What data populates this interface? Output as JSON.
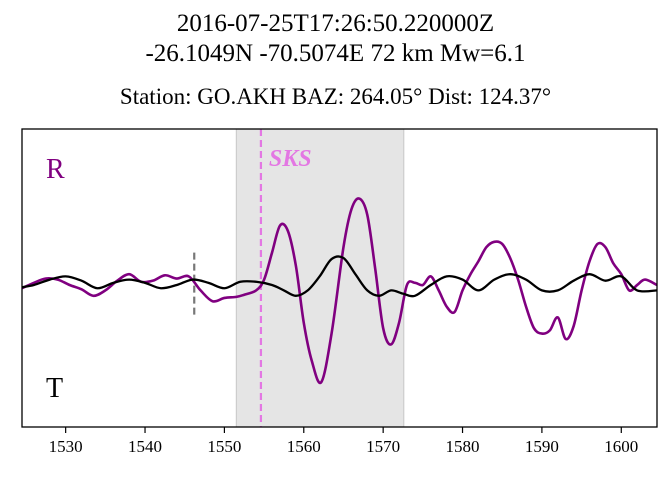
{
  "title": {
    "event_time": "2016-07-25T17:26:50.220000Z",
    "event_location": "-26.1049N -70.5074E 72 km  Mw=6.1",
    "station_info": "Station: GO.AKH  BAZ: 264.05° Dist: 124.37°"
  },
  "colors": {
    "radial": "#800080",
    "transverse": "#000000",
    "phase_line": "#e377e3",
    "window_fill": "#e5e5e5",
    "marker": "#777777"
  },
  "chart_data": {
    "type": "line",
    "xlim": [
      1524.5,
      1604.5
    ],
    "ylim": [
      -1.0,
      1.0
    ],
    "xticks": [
      1530,
      1540,
      1550,
      1560,
      1570,
      1580,
      1590,
      1600
    ],
    "xtick_labels": [
      "1530",
      "1540",
      "1550",
      "1560",
      "1570",
      "1580",
      "1590",
      "1600"
    ],
    "grid": false,
    "channel_labels": {
      "top": "R",
      "bottom": "T"
    },
    "phase": {
      "name": "SKS",
      "time": 1554.6
    },
    "window": [
      1551.5,
      1572.6
    ],
    "marker_time": 1546.2,
    "marker_range": [
      -0.3,
      0.3
    ],
    "series": [
      {
        "name": "R",
        "color": "#800080",
        "x": [
          1524.5,
          1526,
          1527.5,
          1529,
          1530.5,
          1532,
          1533.5,
          1535,
          1536.5,
          1538,
          1539.5,
          1541,
          1542.5,
          1544,
          1545.5,
          1547,
          1548.5,
          1550,
          1551.5,
          1552.5,
          1554,
          1555,
          1556,
          1557,
          1558,
          1559,
          1560,
          1561,
          1562.2,
          1563.5,
          1565,
          1566,
          1567,
          1568,
          1569,
          1570,
          1571,
          1572,
          1573,
          1574,
          1575,
          1576,
          1577,
          1578,
          1579,
          1580,
          1581,
          1582,
          1583,
          1584,
          1585,
          1586,
          1587,
          1588,
          1589,
          1590,
          1591,
          1592,
          1593,
          1594,
          1595,
          1596,
          1597,
          1598,
          1599,
          1600,
          1601,
          1602,
          1603,
          1604.5
        ],
        "values": [
          -0.03,
          0.02,
          0.06,
          0.05,
          0.0,
          -0.04,
          -0.1,
          -0.05,
          0.04,
          0.1,
          0.03,
          0.04,
          0.09,
          0.06,
          0.08,
          -0.05,
          -0.15,
          -0.12,
          -0.11,
          -0.09,
          -0.05,
          0.05,
          0.3,
          0.55,
          0.5,
          0.18,
          -0.35,
          -0.7,
          -0.9,
          -0.45,
          0.35,
          0.7,
          0.8,
          0.65,
          0.15,
          -0.4,
          -0.55,
          -0.35,
          0.0,
          0.02,
          0.0,
          0.08,
          -0.05,
          -0.2,
          -0.25,
          -0.05,
          0.1,
          0.22,
          0.35,
          0.4,
          0.38,
          0.25,
          0.05,
          -0.2,
          -0.4,
          -0.45,
          -0.42,
          -0.3,
          -0.5,
          -0.38,
          -0.05,
          0.22,
          0.38,
          0.35,
          0.2,
          0.1,
          -0.05,
          0.0,
          0.05,
          0.0
        ]
      },
      {
        "name": "T",
        "color": "#000000",
        "x": [
          1524.5,
          1526,
          1528,
          1530,
          1532,
          1534,
          1536,
          1538,
          1540,
          1542,
          1544,
          1546,
          1548,
          1550,
          1552,
          1554,
          1556,
          1557.5,
          1559,
          1560.5,
          1562,
          1563.5,
          1565,
          1566.5,
          1568,
          1569.5,
          1571,
          1572.5,
          1574,
          1576,
          1578,
          1580,
          1582,
          1584,
          1586,
          1588,
          1590,
          1592,
          1594,
          1596,
          1598,
          1600,
          1602,
          1604.5
        ],
        "values": [
          -0.02,
          0.0,
          0.05,
          0.08,
          0.04,
          -0.03,
          0.02,
          0.05,
          0.02,
          -0.03,
          0.0,
          0.05,
          0.02,
          -0.03,
          0.03,
          0.03,
          0.0,
          -0.05,
          -0.1,
          -0.05,
          0.08,
          0.24,
          0.25,
          0.1,
          -0.05,
          -0.1,
          -0.05,
          -0.08,
          -0.1,
          0.0,
          0.08,
          0.05,
          -0.05,
          0.05,
          0.1,
          0.05,
          -0.05,
          -0.05,
          0.04,
          0.1,
          0.04,
          0.08,
          -0.05,
          -0.05
        ]
      }
    ]
  }
}
